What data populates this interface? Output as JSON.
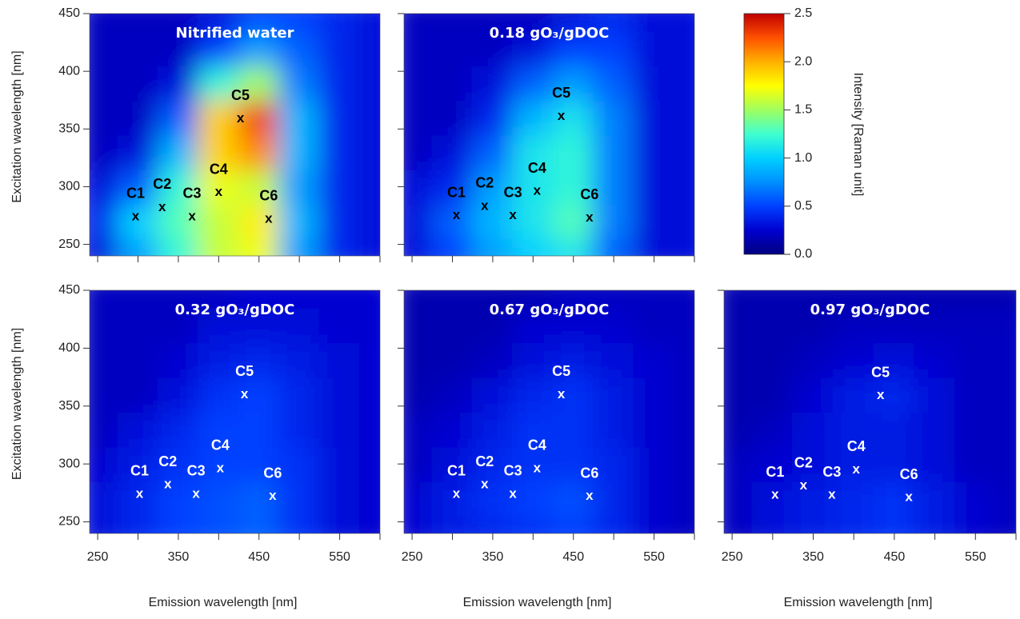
{
  "chart_data": [
    {
      "type": "contour",
      "title": "Nitrified water",
      "ylabel": "Excitation wavelength [nm]",
      "xlim": [
        240,
        600
      ],
      "ylim": [
        240,
        450
      ],
      "xminor": [
        250,
        300,
        350,
        400,
        450,
        500,
        550,
        600
      ],
      "yticks": [
        250,
        300,
        350,
        400,
        450
      ],
      "x": [
        250,
        300,
        350,
        400,
        450,
        500,
        550,
        600
      ],
      "y": [
        240,
        270,
        300,
        330,
        360,
        390,
        420,
        450
      ],
      "z": [
        [
          0.3,
          0.8,
          1.2,
          1.6,
          1.7,
          0.8,
          0.4,
          0.3
        ],
        [
          0.4,
          1.0,
          1.3,
          1.6,
          1.8,
          0.9,
          0.4,
          0.3
        ],
        [
          0.3,
          0.6,
          1.2,
          1.7,
          1.6,
          0.8,
          0.4,
          0.3
        ],
        [
          0.2,
          0.3,
          0.9,
          1.9,
          2.1,
          0.9,
          0.4,
          0.3
        ],
        [
          0.2,
          0.2,
          0.6,
          1.9,
          2.3,
          0.9,
          0.4,
          0.3
        ],
        [
          0.2,
          0.2,
          0.3,
          1.2,
          1.5,
          0.7,
          0.4,
          0.3
        ],
        [
          0.2,
          0.2,
          0.2,
          0.5,
          0.8,
          0.6,
          0.4,
          0.3
        ],
        [
          0.2,
          0.2,
          0.2,
          0.3,
          0.5,
          0.5,
          0.4,
          0.3
        ]
      ],
      "marker": "x",
      "label_color": "#000000",
      "points": [
        {
          "label": "C1",
          "x": 297,
          "y": 274
        },
        {
          "label": "C2",
          "x": 330,
          "y": 282
        },
        {
          "label": "C3",
          "x": 367,
          "y": 274
        },
        {
          "label": "C4",
          "x": 400,
          "y": 295
        },
        {
          "label": "C5",
          "x": 427,
          "y": 359
        },
        {
          "label": "C6",
          "x": 462,
          "y": 272
        }
      ]
    },
    {
      "type": "contour",
      "title": "0.18 gO₃/gDOC",
      "xlim": [
        240,
        600
      ],
      "ylim": [
        240,
        450
      ],
      "xminor": [
        250,
        300,
        350,
        400,
        450,
        500,
        550,
        600
      ],
      "yminor": [
        250,
        300,
        350,
        400,
        450
      ],
      "x": [
        250,
        300,
        350,
        400,
        450,
        500,
        550,
        600
      ],
      "y": [
        240,
        270,
        300,
        330,
        360,
        390,
        420,
        450
      ],
      "z": [
        [
          0.3,
          0.5,
          0.8,
          1.0,
          1.1,
          0.6,
          0.3,
          0.3
        ],
        [
          0.3,
          0.6,
          0.9,
          1.1,
          1.3,
          0.7,
          0.3,
          0.3
        ],
        [
          0.3,
          0.4,
          0.8,
          1.1,
          1.2,
          0.7,
          0.3,
          0.3
        ],
        [
          0.2,
          0.3,
          0.6,
          1.1,
          1.2,
          0.7,
          0.3,
          0.3
        ],
        [
          0.2,
          0.2,
          0.4,
          0.9,
          1.1,
          0.7,
          0.3,
          0.3
        ],
        [
          0.2,
          0.2,
          0.3,
          0.6,
          0.8,
          0.6,
          0.3,
          0.3
        ],
        [
          0.2,
          0.2,
          0.2,
          0.3,
          0.5,
          0.5,
          0.3,
          0.3
        ],
        [
          0.2,
          0.2,
          0.2,
          0.2,
          0.3,
          0.4,
          0.3,
          0.3
        ]
      ],
      "marker": "x",
      "label_color": "#000000",
      "points": [
        {
          "label": "C1",
          "x": 305,
          "y": 275
        },
        {
          "label": "C2",
          "x": 340,
          "y": 283
        },
        {
          "label": "C3",
          "x": 375,
          "y": 275
        },
        {
          "label": "C4",
          "x": 405,
          "y": 296
        },
        {
          "label": "C5",
          "x": 435,
          "y": 361
        },
        {
          "label": "C6",
          "x": 470,
          "y": 273
        }
      ]
    },
    {
      "type": "contour",
      "title": "0.32 gO₃/gDOC",
      "ylabel": "Excitation wavelength [nm]",
      "xlabel": "Emission wavelength [nm]",
      "xlim": [
        240,
        600
      ],
      "ylim": [
        240,
        450
      ],
      "xticks": [
        250,
        350,
        450,
        550
      ],
      "xminor": [
        300,
        400,
        500,
        600
      ],
      "yticks": [
        250,
        300,
        350,
        400,
        450
      ],
      "x": [
        250,
        300,
        350,
        400,
        450,
        500,
        550,
        600
      ],
      "y": [
        240,
        270,
        300,
        330,
        360,
        390,
        420,
        450
      ],
      "z": [
        [
          0.3,
          0.4,
          0.5,
          0.55,
          0.6,
          0.45,
          0.3,
          0.25
        ],
        [
          0.3,
          0.4,
          0.5,
          0.55,
          0.6,
          0.45,
          0.3,
          0.25
        ],
        [
          0.25,
          0.35,
          0.45,
          0.5,
          0.5,
          0.45,
          0.3,
          0.25
        ],
        [
          0.2,
          0.3,
          0.4,
          0.5,
          0.5,
          0.4,
          0.3,
          0.25
        ],
        [
          0.2,
          0.2,
          0.3,
          0.45,
          0.5,
          0.4,
          0.3,
          0.25
        ],
        [
          0.2,
          0.2,
          0.25,
          0.35,
          0.4,
          0.35,
          0.3,
          0.25
        ],
        [
          0.2,
          0.2,
          0.2,
          0.3,
          0.3,
          0.3,
          0.25,
          0.25
        ],
        [
          0.2,
          0.2,
          0.2,
          0.2,
          0.25,
          0.25,
          0.25,
          0.25
        ]
      ],
      "marker": "x",
      "label_color": "#ffffff",
      "points": [
        {
          "label": "C1",
          "x": 302,
          "y": 274
        },
        {
          "label": "C2",
          "x": 337,
          "y": 282
        },
        {
          "label": "C3",
          "x": 372,
          "y": 274
        },
        {
          "label": "C4",
          "x": 402,
          "y": 296
        },
        {
          "label": "C5",
          "x": 432,
          "y": 360
        },
        {
          "label": "C6",
          "x": 467,
          "y": 272
        }
      ]
    },
    {
      "type": "contour",
      "title": "0.67 gO₃/gDOC",
      "xlabel": "Emission wavelength [nm]",
      "xlim": [
        240,
        600
      ],
      "ylim": [
        240,
        450
      ],
      "xticks": [
        250,
        350,
        450,
        550
      ],
      "xminor": [
        300,
        400,
        500,
        600
      ],
      "yminor": [
        250,
        300,
        350,
        400,
        450
      ],
      "x": [
        250,
        300,
        350,
        400,
        450,
        500,
        550,
        600
      ],
      "y": [
        240,
        270,
        300,
        330,
        360,
        390,
        420,
        450
      ],
      "z": [
        [
          0.25,
          0.35,
          0.4,
          0.45,
          0.5,
          0.4,
          0.25,
          0.2
        ],
        [
          0.25,
          0.35,
          0.45,
          0.5,
          0.55,
          0.4,
          0.25,
          0.2
        ],
        [
          0.2,
          0.3,
          0.4,
          0.45,
          0.45,
          0.4,
          0.25,
          0.2
        ],
        [
          0.2,
          0.25,
          0.35,
          0.45,
          0.45,
          0.35,
          0.25,
          0.2
        ],
        [
          0.15,
          0.2,
          0.3,
          0.4,
          0.45,
          0.35,
          0.25,
          0.2
        ],
        [
          0.15,
          0.15,
          0.2,
          0.3,
          0.35,
          0.3,
          0.25,
          0.2
        ],
        [
          0.15,
          0.15,
          0.15,
          0.25,
          0.25,
          0.25,
          0.2,
          0.2
        ],
        [
          0.15,
          0.15,
          0.15,
          0.15,
          0.2,
          0.2,
          0.2,
          0.2
        ]
      ],
      "marker": "x",
      "label_color": "#ffffff",
      "points": [
        {
          "label": "C1",
          "x": 305,
          "y": 274
        },
        {
          "label": "C2",
          "x": 340,
          "y": 282
        },
        {
          "label": "C3",
          "x": 375,
          "y": 274
        },
        {
          "label": "C4",
          "x": 405,
          "y": 296
        },
        {
          "label": "C5",
          "x": 435,
          "y": 360
        },
        {
          "label": "C6",
          "x": 470,
          "y": 272
        }
      ]
    },
    {
      "type": "contour",
      "title": "0.97 gO₃/gDOC",
      "xlabel": "Emission wavelength [nm]",
      "xlim": [
        240,
        600
      ],
      "ylim": [
        240,
        450
      ],
      "xticks": [
        250,
        350,
        450,
        550
      ],
      "xminor": [
        300,
        400,
        500,
        600
      ],
      "yminor": [
        250,
        300,
        350,
        400,
        450
      ],
      "x": [
        250,
        300,
        350,
        400,
        450,
        500,
        550,
        600
      ],
      "y": [
        240,
        270,
        300,
        330,
        360,
        390,
        420,
        450
      ],
      "z": [
        [
          0.2,
          0.3,
          0.35,
          0.4,
          0.45,
          0.35,
          0.25,
          0.2
        ],
        [
          0.2,
          0.3,
          0.35,
          0.4,
          0.45,
          0.35,
          0.25,
          0.2
        ],
        [
          0.2,
          0.25,
          0.3,
          0.35,
          0.35,
          0.3,
          0.2,
          0.2
        ],
        [
          0.15,
          0.2,
          0.3,
          0.35,
          0.35,
          0.3,
          0.2,
          0.2
        ],
        [
          0.15,
          0.15,
          0.25,
          0.35,
          0.4,
          0.3,
          0.2,
          0.2
        ],
        [
          0.15,
          0.15,
          0.2,
          0.25,
          0.3,
          0.25,
          0.2,
          0.2
        ],
        [
          0.15,
          0.15,
          0.15,
          0.2,
          0.2,
          0.2,
          0.2,
          0.2
        ],
        [
          0.15,
          0.15,
          0.15,
          0.15,
          0.15,
          0.15,
          0.15,
          0.15
        ]
      ],
      "marker": "x",
      "label_color": "#ffffff",
      "points": [
        {
          "label": "C1",
          "x": 303,
          "y": 273
        },
        {
          "label": "C2",
          "x": 338,
          "y": 281
        },
        {
          "label": "C3",
          "x": 373,
          "y": 273
        },
        {
          "label": "C4",
          "x": 403,
          "y": 295
        },
        {
          "label": "C5",
          "x": 433,
          "y": 359
        },
        {
          "label": "C6",
          "x": 468,
          "y": 271
        }
      ]
    },
    {
      "type": "colorbar",
      "label": "Intensity [Raman unit]",
      "zlim": [
        0,
        2.5
      ],
      "zticks": [
        {
          "value": 0,
          "label": "0.0"
        },
        {
          "value": 0.5,
          "label": "0.5"
        },
        {
          "value": 1,
          "label": "1.0"
        },
        {
          "value": 1.5,
          "label": "1.5"
        },
        {
          "value": 2,
          "label": "2.0"
        },
        {
          "value": 2.5,
          "label": "2.5"
        }
      ],
      "colors": [
        "#00007f",
        "#0000d0",
        "#0040ff",
        "#0090ff",
        "#00d0ff",
        "#40ffd0",
        "#a0ff60",
        "#ffff00",
        "#ffb000",
        "#ff5000",
        "#c00000"
      ]
    }
  ]
}
